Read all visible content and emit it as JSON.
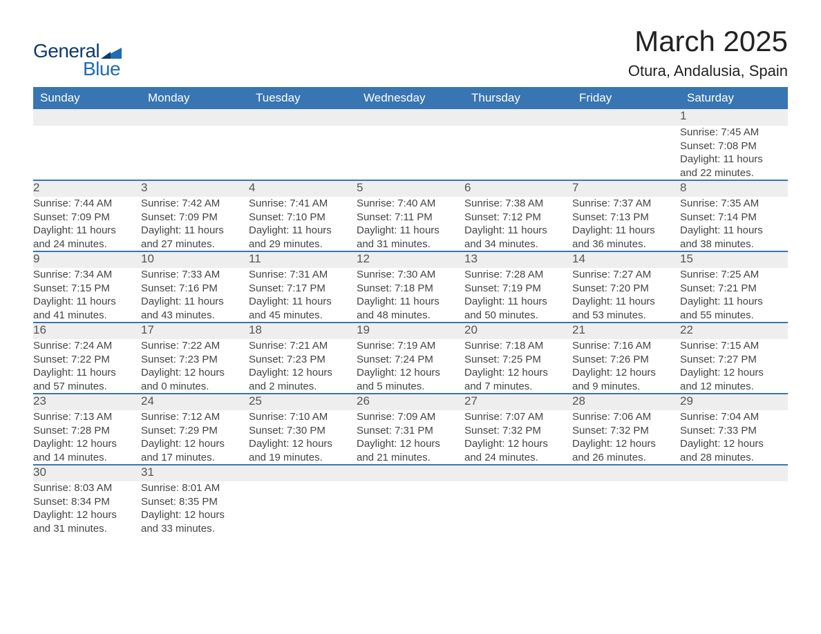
{
  "logo": {
    "text_general": "General",
    "text_blue": "Blue"
  },
  "title": "March 2025",
  "location": "Otura, Andalusia, Spain",
  "colors": {
    "header_bg": "#3875b3",
    "header_text": "#ffffff",
    "daynum_bg": "#eeeeee",
    "row_divider": "#3875b3",
    "body_text": "#444444",
    "title_text": "#222222",
    "logo_general": "#0f3a6a",
    "logo_blue": "#1f6db5",
    "page_bg": "#ffffff"
  },
  "typography": {
    "title_fontsize": 42,
    "location_fontsize": 22,
    "weekday_fontsize": 17,
    "daynum_fontsize": 17,
    "detail_fontsize": 15,
    "font_family": "Arial"
  },
  "weekdays": [
    "Sunday",
    "Monday",
    "Tuesday",
    "Wednesday",
    "Thursday",
    "Friday",
    "Saturday"
  ],
  "weeks": [
    [
      null,
      null,
      null,
      null,
      null,
      null,
      {
        "n": "1",
        "sunrise": "Sunrise: 7:45 AM",
        "sunset": "Sunset: 7:08 PM",
        "d1": "Daylight: 11 hours",
        "d2": "and 22 minutes."
      }
    ],
    [
      {
        "n": "2",
        "sunrise": "Sunrise: 7:44 AM",
        "sunset": "Sunset: 7:09 PM",
        "d1": "Daylight: 11 hours",
        "d2": "and 24 minutes."
      },
      {
        "n": "3",
        "sunrise": "Sunrise: 7:42 AM",
        "sunset": "Sunset: 7:09 PM",
        "d1": "Daylight: 11 hours",
        "d2": "and 27 minutes."
      },
      {
        "n": "4",
        "sunrise": "Sunrise: 7:41 AM",
        "sunset": "Sunset: 7:10 PM",
        "d1": "Daylight: 11 hours",
        "d2": "and 29 minutes."
      },
      {
        "n": "5",
        "sunrise": "Sunrise: 7:40 AM",
        "sunset": "Sunset: 7:11 PM",
        "d1": "Daylight: 11 hours",
        "d2": "and 31 minutes."
      },
      {
        "n": "6",
        "sunrise": "Sunrise: 7:38 AM",
        "sunset": "Sunset: 7:12 PM",
        "d1": "Daylight: 11 hours",
        "d2": "and 34 minutes."
      },
      {
        "n": "7",
        "sunrise": "Sunrise: 7:37 AM",
        "sunset": "Sunset: 7:13 PM",
        "d1": "Daylight: 11 hours",
        "d2": "and 36 minutes."
      },
      {
        "n": "8",
        "sunrise": "Sunrise: 7:35 AM",
        "sunset": "Sunset: 7:14 PM",
        "d1": "Daylight: 11 hours",
        "d2": "and 38 minutes."
      }
    ],
    [
      {
        "n": "9",
        "sunrise": "Sunrise: 7:34 AM",
        "sunset": "Sunset: 7:15 PM",
        "d1": "Daylight: 11 hours",
        "d2": "and 41 minutes."
      },
      {
        "n": "10",
        "sunrise": "Sunrise: 7:33 AM",
        "sunset": "Sunset: 7:16 PM",
        "d1": "Daylight: 11 hours",
        "d2": "and 43 minutes."
      },
      {
        "n": "11",
        "sunrise": "Sunrise: 7:31 AM",
        "sunset": "Sunset: 7:17 PM",
        "d1": "Daylight: 11 hours",
        "d2": "and 45 minutes."
      },
      {
        "n": "12",
        "sunrise": "Sunrise: 7:30 AM",
        "sunset": "Sunset: 7:18 PM",
        "d1": "Daylight: 11 hours",
        "d2": "and 48 minutes."
      },
      {
        "n": "13",
        "sunrise": "Sunrise: 7:28 AM",
        "sunset": "Sunset: 7:19 PM",
        "d1": "Daylight: 11 hours",
        "d2": "and 50 minutes."
      },
      {
        "n": "14",
        "sunrise": "Sunrise: 7:27 AM",
        "sunset": "Sunset: 7:20 PM",
        "d1": "Daylight: 11 hours",
        "d2": "and 53 minutes."
      },
      {
        "n": "15",
        "sunrise": "Sunrise: 7:25 AM",
        "sunset": "Sunset: 7:21 PM",
        "d1": "Daylight: 11 hours",
        "d2": "and 55 minutes."
      }
    ],
    [
      {
        "n": "16",
        "sunrise": "Sunrise: 7:24 AM",
        "sunset": "Sunset: 7:22 PM",
        "d1": "Daylight: 11 hours",
        "d2": "and 57 minutes."
      },
      {
        "n": "17",
        "sunrise": "Sunrise: 7:22 AM",
        "sunset": "Sunset: 7:23 PM",
        "d1": "Daylight: 12 hours",
        "d2": "and 0 minutes."
      },
      {
        "n": "18",
        "sunrise": "Sunrise: 7:21 AM",
        "sunset": "Sunset: 7:23 PM",
        "d1": "Daylight: 12 hours",
        "d2": "and 2 minutes."
      },
      {
        "n": "19",
        "sunrise": "Sunrise: 7:19 AM",
        "sunset": "Sunset: 7:24 PM",
        "d1": "Daylight: 12 hours",
        "d2": "and 5 minutes."
      },
      {
        "n": "20",
        "sunrise": "Sunrise: 7:18 AM",
        "sunset": "Sunset: 7:25 PM",
        "d1": "Daylight: 12 hours",
        "d2": "and 7 minutes."
      },
      {
        "n": "21",
        "sunrise": "Sunrise: 7:16 AM",
        "sunset": "Sunset: 7:26 PM",
        "d1": "Daylight: 12 hours",
        "d2": "and 9 minutes."
      },
      {
        "n": "22",
        "sunrise": "Sunrise: 7:15 AM",
        "sunset": "Sunset: 7:27 PM",
        "d1": "Daylight: 12 hours",
        "d2": "and 12 minutes."
      }
    ],
    [
      {
        "n": "23",
        "sunrise": "Sunrise: 7:13 AM",
        "sunset": "Sunset: 7:28 PM",
        "d1": "Daylight: 12 hours",
        "d2": "and 14 minutes."
      },
      {
        "n": "24",
        "sunrise": "Sunrise: 7:12 AM",
        "sunset": "Sunset: 7:29 PM",
        "d1": "Daylight: 12 hours",
        "d2": "and 17 minutes."
      },
      {
        "n": "25",
        "sunrise": "Sunrise: 7:10 AM",
        "sunset": "Sunset: 7:30 PM",
        "d1": "Daylight: 12 hours",
        "d2": "and 19 minutes."
      },
      {
        "n": "26",
        "sunrise": "Sunrise: 7:09 AM",
        "sunset": "Sunset: 7:31 PM",
        "d1": "Daylight: 12 hours",
        "d2": "and 21 minutes."
      },
      {
        "n": "27",
        "sunrise": "Sunrise: 7:07 AM",
        "sunset": "Sunset: 7:32 PM",
        "d1": "Daylight: 12 hours",
        "d2": "and 24 minutes."
      },
      {
        "n": "28",
        "sunrise": "Sunrise: 7:06 AM",
        "sunset": "Sunset: 7:32 PM",
        "d1": "Daylight: 12 hours",
        "d2": "and 26 minutes."
      },
      {
        "n": "29",
        "sunrise": "Sunrise: 7:04 AM",
        "sunset": "Sunset: 7:33 PM",
        "d1": "Daylight: 12 hours",
        "d2": "and 28 minutes."
      }
    ],
    [
      {
        "n": "30",
        "sunrise": "Sunrise: 8:03 AM",
        "sunset": "Sunset: 8:34 PM",
        "d1": "Daylight: 12 hours",
        "d2": "and 31 minutes."
      },
      {
        "n": "31",
        "sunrise": "Sunrise: 8:01 AM",
        "sunset": "Sunset: 8:35 PM",
        "d1": "Daylight: 12 hours",
        "d2": "and 33 minutes."
      },
      null,
      null,
      null,
      null,
      null
    ]
  ]
}
